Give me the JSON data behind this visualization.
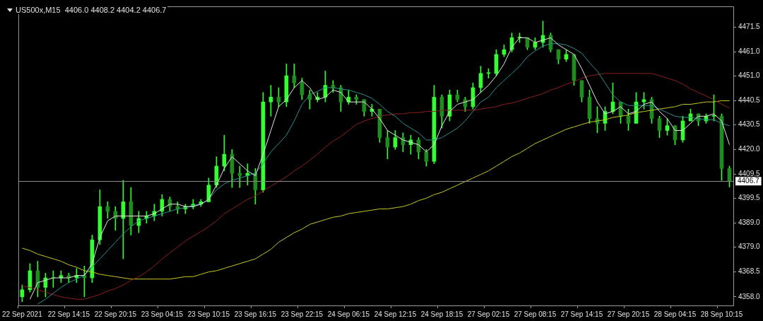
{
  "chart_data": {
    "type": "candlestick",
    "title": "US500x,M15  4406.0 4408.2 4404.2 4406.7",
    "color": "#33ff33",
    "colors": [
      "#33ff33",
      "#33ff33",
      "#1e8c1e",
      "#33ff33",
      "#1e8c1e",
      "#33ff33",
      "#1e8c1e",
      "#33ff33",
      "#1e8c1e",
      "#33ff33",
      "#33ff33",
      "#1e8c1e",
      "#1e8c1e",
      "#33ff33",
      "#1e8c1e",
      "#33ff33",
      "#33ff33",
      "#33ff33",
      "#33ff33",
      "#1e8c1e",
      "#1e8c1e",
      "#33ff33",
      "#33ff33",
      "#33ff33",
      "#33ff33",
      "#33ff33",
      "#33ff33",
      "#1e8c1e",
      "#1e8c1e",
      "#33ff33",
      "#1e8c1e",
      "#33ff33",
      "#33ff33",
      "#1e8c1e",
      "#33ff33",
      "#1e8c1e",
      "#1e8c1e",
      "#1e8c1e",
      "#33ff33",
      "#33ff33",
      "#1e8c1e",
      "#1e8c1e",
      "#33ff33",
      "#1e8c1e",
      "#1e8c1e",
      "#33ff33",
      "#1e8c1e",
      "#1e8c1e",
      "#33ff33",
      "#1e8c1e",
      "#33ff33",
      "#1e8c1e",
      "#1e8c1e",
      "#33ff33",
      "#1e8c1e",
      "#33ff33",
      "#1e8c1e",
      "#1e8c1e",
      "#33ff33",
      "#33ff33",
      "#33ff33",
      "#33ff33",
      "#33ff33",
      "#33ff33",
      "#33ff33",
      "#1e8c1e",
      "#33ff33",
      "#33ff33",
      "#1e8c1e",
      "#1e8c1e",
      "#33ff33",
      "#1e8c1e",
      "#1e8c1e",
      "#1e8c1e",
      "#1e8c1e",
      "#33ff33",
      "#33ff33",
      "#1e8c1e",
      "#1e8c1e",
      "#33ff33",
      "#33ff33",
      "#1e8c1e",
      "#1e8c1e",
      "#33ff33",
      "#1e8c1e",
      "#33ff33",
      "#33ff33",
      "#1e8c1e",
      "#33ff33",
      "#33ff33",
      "#1e8c1e",
      "#1e8c1e"
    ],
    "categories": [
      "22 Sep 2021",
      null,
      null,
      null,
      null,
      null,
      "22 Sep 14:15",
      null,
      null,
      null,
      null,
      null,
      "22 Sep 20:15",
      null,
      null,
      null,
      null,
      null,
      "23 Sep 04:15",
      null,
      null,
      null,
      null,
      null,
      "23 Sep 10:15",
      null,
      null,
      null,
      null,
      null,
      "23 Sep 16:15",
      null,
      null,
      null,
      null,
      null,
      "23 Sep 22:15",
      null,
      null,
      null,
      null,
      null,
      "24 Sep 06:15",
      null,
      null,
      null,
      null,
      null,
      "24 Sep 12:15",
      null,
      null,
      null,
      null,
      null,
      "24 Sep 18:15",
      null,
      null,
      null,
      null,
      null,
      "27 Sep 02:15",
      null,
      null,
      null,
      null,
      null,
      "27 Sep 08:15",
      null,
      null,
      null,
      null,
      null,
      "27 Sep 14:15",
      null,
      null,
      null,
      null,
      null,
      "27 Sep 20:15",
      null,
      null,
      null,
      null,
      null,
      "28 Sep 04:15",
      null,
      null,
      null,
      null,
      null,
      "28 Sep 10:15",
      null
    ],
    "ohlc": [
      [
        4358,
        4363,
        4356,
        4361
      ],
      [
        4361,
        4372,
        4360,
        4369
      ],
      [
        4369,
        4373,
        4358,
        4362
      ],
      [
        4362,
        4368,
        4358,
        4366
      ],
      [
        4366,
        4369,
        4362,
        4366
      ],
      [
        4366,
        4369,
        4364,
        4367
      ],
      [
        4367,
        4368,
        4364,
        4366
      ],
      [
        4366,
        4370,
        4364,
        4367
      ],
      [
        4367,
        4371,
        4358,
        4366
      ],
      [
        4366,
        4384,
        4364,
        4382
      ],
      [
        4382,
        4403,
        4380,
        4396
      ],
      [
        4396,
        4398,
        4391,
        4394
      ],
      [
        4394,
        4396,
        4386,
        4391
      ],
      [
        4391,
        4407,
        4374,
        4398
      ],
      [
        4398,
        4404,
        4384,
        4388
      ],
      [
        4388,
        4394,
        4385,
        4391
      ],
      [
        4391,
        4394,
        4389,
        4392
      ],
      [
        4392,
        4397,
        4390,
        4394
      ],
      [
        4394,
        4401,
        4392,
        4399
      ],
      [
        4399,
        4400,
        4394,
        4396
      ],
      [
        4396,
        4398,
        4393,
        4395
      ],
      [
        4395,
        4397,
        4393,
        4396
      ],
      [
        4396,
        4399,
        4395,
        4397
      ],
      [
        4397,
        4399,
        4396,
        4398
      ],
      [
        4398,
        4408,
        4398,
        4405
      ],
      [
        4405,
        4417,
        4404,
        4413
      ],
      [
        4413,
        4426,
        4411,
        4418
      ],
      [
        4418,
        4420,
        4404,
        4410
      ],
      [
        4410,
        4413,
        4404,
        4409
      ],
      [
        4409,
        4414,
        4405,
        4410
      ],
      [
        4410,
        4412,
        4397,
        4403
      ],
      [
        4403,
        4444,
        4402,
        4440
      ],
      [
        4440,
        4447,
        4434,
        4442
      ],
      [
        4442,
        4446,
        4438,
        4440
      ],
      [
        4440,
        4456,
        4438,
        4451
      ],
      [
        4451,
        4456,
        4446,
        4448
      ],
      [
        4448,
        4450,
        4441,
        4443
      ],
      [
        4443,
        4445,
        4437,
        4441
      ],
      [
        4441,
        4444,
        4440,
        4442
      ],
      [
        4442,
        4453,
        4440,
        4447
      ],
      [
        4447,
        4449,
        4444,
        4446
      ],
      [
        4446,
        4447,
        4436,
        4440
      ],
      [
        4440,
        4445,
        4439,
        4442
      ],
      [
        4442,
        4443,
        4439,
        4441
      ],
      [
        4441,
        4441,
        4434,
        4436
      ],
      [
        4436,
        4439,
        4434,
        4437
      ],
      [
        4437,
        4437,
        4423,
        4425
      ],
      [
        4425,
        4428,
        4416,
        4421
      ],
      [
        4421,
        4428,
        4420,
        4425
      ],
      [
        4425,
        4427,
        4419,
        4422
      ],
      [
        4422,
        4426,
        4418,
        4424
      ],
      [
        4424,
        4425,
        4416,
        4419
      ],
      [
        4419,
        4420,
        4413,
        4415
      ],
      [
        4415,
        4447,
        4414,
        4442
      ],
      [
        4442,
        4443,
        4429,
        4434
      ],
      [
        4434,
        4445,
        4432,
        4443
      ],
      [
        4443,
        4445,
        4440,
        4441
      ],
      [
        4441,
        4442,
        4436,
        4438
      ],
      [
        4438,
        4448,
        4437,
        4446
      ],
      [
        4446,
        4455,
        4444,
        4452
      ],
      [
        4452,
        4454,
        4450,
        4452
      ],
      [
        4452,
        4462,
        4451,
        4460
      ],
      [
        4460,
        4464,
        4459,
        4462
      ],
      [
        4462,
        4469,
        4461,
        4467
      ],
      [
        4467,
        4469,
        4465,
        4467
      ],
      [
        4467,
        4467,
        4462,
        4463
      ],
      [
        4463,
        4467,
        4462,
        4465
      ],
      [
        4465,
        4474,
        4463,
        4468
      ],
      [
        4468,
        4469,
        4461,
        4462
      ],
      [
        4462,
        4462,
        4456,
        4458
      ],
      [
        4458,
        4462,
        4457,
        4460
      ],
      [
        4460,
        4460,
        4447,
        4449
      ],
      [
        4449,
        4449,
        4440,
        4442
      ],
      [
        4442,
        4445,
        4431,
        4433
      ],
      [
        4433,
        4438,
        4427,
        4431
      ],
      [
        4431,
        4438,
        4428,
        4436
      ],
      [
        4436,
        4448,
        4435,
        4440
      ],
      [
        4440,
        4440,
        4431,
        4434
      ],
      [
        4434,
        4437,
        4428,
        4431
      ],
      [
        4431,
        4444,
        4431,
        4440
      ],
      [
        4440,
        4444,
        4437,
        4441
      ],
      [
        4441,
        4442,
        4431,
        4433
      ],
      [
        4433,
        4434,
        4425,
        4428
      ],
      [
        4428,
        4433,
        4426,
        4430
      ],
      [
        4430,
        4430,
        4422,
        4424
      ],
      [
        4424,
        4434,
        4423,
        4432
      ],
      [
        4432,
        4437,
        4432,
        4435
      ],
      [
        4435,
        4435,
        4430,
        4432
      ],
      [
        4432,
        4435,
        4431,
        4434
      ],
      [
        4434,
        4443,
        4432,
        4434
      ],
      [
        4434,
        4435,
        4407,
        4412
      ],
      [
        4412,
        4413,
        4404.2,
        4406.7
      ]
    ],
    "series": [
      {
        "type": "line",
        "color": "#e6e6e6",
        "values": [
          null,
          4357,
          4364,
          4365,
          4366,
          4366,
          4366,
          4367,
          4367,
          4372,
          4383,
          4390,
          4392,
          4392,
          4392,
          4392,
          4392,
          4393,
          4395,
          4397,
          4397,
          4396,
          4396,
          4397,
          4399,
          4405,
          4412,
          4417,
          4414,
          4411,
          4409,
          4418,
          4428,
          4438,
          4441,
          4446,
          4449,
          4446,
          4441,
          4442,
          4445,
          4444,
          4440,
          4440,
          4440,
          4437,
          4433,
          4428,
          4426,
          4424,
          4423,
          4422,
          4419,
          4422,
          4430,
          4436,
          4439,
          4440,
          4441,
          4444,
          4447,
          4451,
          4456,
          4463,
          4467,
          4467,
          4465,
          4466,
          4467,
          4464,
          4462,
          4460,
          4454,
          4447,
          4440,
          4435,
          4436,
          4438,
          4435,
          4436,
          4439,
          4440,
          4436,
          4433,
          4428,
          4428,
          4431,
          4434,
          4434,
          4435,
          4432,
          4422
        ]
      },
      {
        "type": "line",
        "color": "#2a9090",
        "values": [
          null,
          null,
          4355,
          4357,
          4359.5,
          4362,
          4364,
          4365.5,
          4367,
          4370.5,
          4374,
          4377.5,
          4381,
          4384.5,
          4387.5,
          4390,
          4391,
          4392,
          4393,
          4394,
          4395,
          4395.5,
          4396.5,
          4397,
          4399,
          4403,
          4405.5,
          4407,
          4408,
          4409,
          4410,
          4414,
          4419,
          4422.5,
          4426,
          4432,
          4439,
          4443,
          4444.5,
          4446,
          4446,
          4445.5,
          4445,
          4444,
          4443,
          4441.5,
          4439,
          4436,
          4434,
          4431,
          4429,
          4427,
          4424,
          4424,
          4425,
          4427,
          4429,
          4432,
          4436,
          4440,
          4442,
          4446,
          4449,
          4452,
          4455,
          4459,
          4461.5,
          4463.5,
          4464.5,
          4464.5,
          4464,
          4462.5,
          4460.5,
          4456.5,
          4453,
          4448,
          4443,
          4440,
          4438.5,
          4438.5,
          4438.5,
          4438.5,
          4437,
          4435.5,
          4434,
          4433.5,
          4433.5,
          4433,
          4432.5,
          4432.5,
          4431,
          4430
        ]
      },
      {
        "type": "line",
        "color": "#8b2020",
        "values": [
          4362.5,
          4362,
          4361,
          4360,
          4359,
          4358,
          4357.5,
          4357,
          4357,
          4358,
          4359,
          4360.5,
          4361.5,
          4363,
          4365,
          4366.5,
          4368.5,
          4371,
          4374,
          4376.5,
          4379,
          4381.5,
          4383.5,
          4385.5,
          4387.5,
          4390,
          4393,
          4395,
          4397,
          4399,
          4400.5,
          4402.5,
          4404.5,
          4406.5,
          4408.5,
          4411,
          4413,
          4415.5,
          4418,
          4421,
          4423.5,
          4425.5,
          4428,
          4430.5,
          4432,
          4433,
          4434,
          4434.5,
          4435,
          4435,
          4435.5,
          4435.5,
          4436,
          4436,
          4436.5,
          4436.5,
          4436.5,
          4436.5,
          4436.5,
          4437,
          4437.5,
          4438,
          4439,
          4439.5,
          4440.5,
          4441.5,
          4442.5,
          4443.5,
          4445,
          4446,
          4447.5,
          4448.5,
          4450,
          4451,
          4451.5,
          4452,
          4452,
          4452,
          4452,
          4452,
          4452,
          4452,
          4451,
          4450,
          4449,
          4447.5,
          4445.5,
          4444,
          4442.5,
          4441,
          4439,
          4437.5
        ]
      },
      {
        "type": "line",
        "color": "#c8c828",
        "values": [
          4378.5,
          4377.5,
          4376,
          4375,
          4374,
          4373,
          4371.5,
          4370.5,
          4369,
          4368.5,
          4367.5,
          4367,
          4366.5,
          4366,
          4365.5,
          4365.5,
          4365.5,
          4365.5,
          4365.5,
          4365.5,
          4366,
          4366.5,
          4366.5,
          4367.5,
          4368.5,
          4369,
          4370,
          4371,
          4372,
          4373,
          4374,
          4376,
          4378,
          4381,
          4383,
          4385,
          4386.5,
          4388.5,
          4389.5,
          4390.5,
          4391.5,
          4392,
          4393,
          4393.5,
          4394,
          4394.5,
          4395,
          4395,
          4395.5,
          4396,
          4397,
          4398.5,
          4399.5,
          4401,
          4402,
          4403.5,
          4405,
          4406.5,
          4408,
          4409.5,
          4411,
          4413,
          4415,
          4417,
          4418.5,
          4420.5,
          4422.5,
          4424,
          4425.5,
          4427,
          4428.5,
          4429.5,
          4430.5,
          4431.5,
          4432,
          4432.5,
          4433.5,
          4434,
          4434.5,
          4435.5,
          4436,
          4436.5,
          4437,
          4437.5,
          4438,
          4439,
          4439,
          4439.5,
          4440,
          4440,
          4440.5,
          4440.5
        ]
      }
    ],
    "ylim": [
      4354.4,
      4480.2
    ],
    "yticks": [
      {
        "value": 4358,
        "label": "4358.0"
      },
      {
        "value": 4368.5,
        "label": "4368.5"
      },
      {
        "value": 4379,
        "label": "4379.0"
      },
      {
        "value": 4389,
        "label": "4389.0"
      },
      {
        "value": 4399.5,
        "label": "4399.5"
      },
      {
        "value": 4409.5,
        "label": "4409.5"
      },
      {
        "value": 4420,
        "label": "4420.0"
      },
      {
        "value": 4430.5,
        "label": "4430.5"
      },
      {
        "value": 4440.5,
        "label": "4440.5"
      },
      {
        "value": 4451,
        "label": "4451.0"
      },
      {
        "value": 4461,
        "label": "4461.0"
      },
      {
        "value": 4471.5,
        "label": "4471.5"
      }
    ],
    "ref_lines": [
      {
        "axis": "y",
        "value": 4406.7,
        "label": "4406.7",
        "color": "#8c8c8c"
      }
    ],
    "grid": false,
    "legend": false
  }
}
